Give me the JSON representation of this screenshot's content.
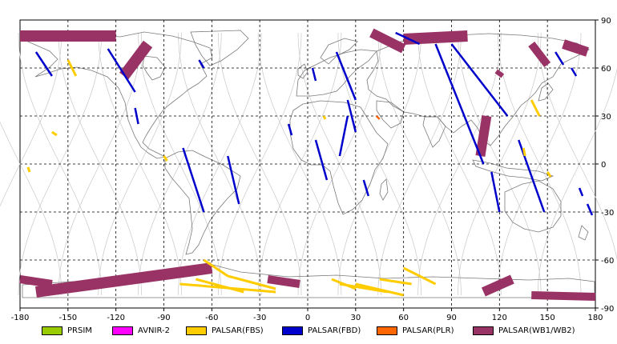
{
  "map": {
    "x_ticks": [
      "-180",
      "-150",
      "-120",
      "-90",
      "-60",
      "-30",
      "0",
      "30",
      "60",
      "90",
      "120",
      "150",
      "180"
    ],
    "y_ticks": [
      "90",
      "60",
      "30",
      "0",
      "-30",
      "-60",
      "-90"
    ],
    "colors": {
      "coast": "#7a7a7a",
      "orbit": "#c8c8c8",
      "grid": "#000000",
      "prism": "#99cc00",
      "avnir2": "#ff00ff",
      "fbs": "#ffcc00",
      "fbd": "#0000cc",
      "plr": "#ff6600",
      "wb": "#993366"
    }
  },
  "legend": [
    {
      "label": "PRSIM",
      "color": "#99cc00"
    },
    {
      "label": "AVNIR-2",
      "color": "#ff00ff"
    },
    {
      "label": "PALSAR(FBS)",
      "color": "#ffcc00"
    },
    {
      "label": "PALSAR(FBD)",
      "color": "#0000cc"
    },
    {
      "label": "PALSAR(PLR)",
      "color": "#ff6600"
    },
    {
      "label": "PALSAR(WB1/WB2)",
      "color": "#993366"
    }
  ]
}
